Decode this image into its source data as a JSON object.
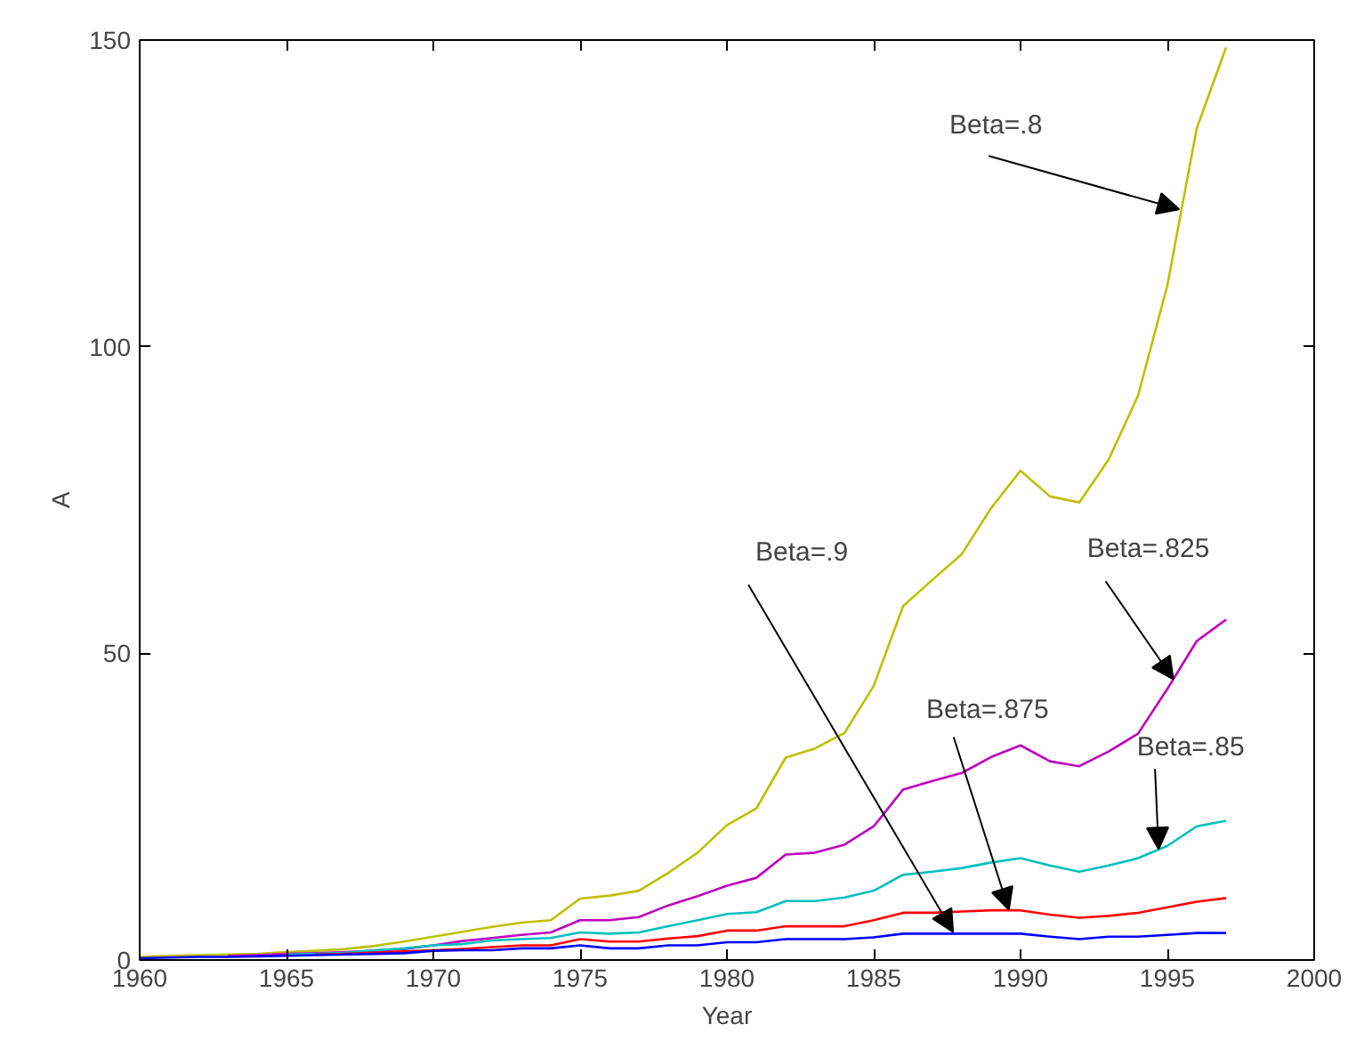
{
  "chart_data": {
    "type": "line",
    "xlabel": "Year",
    "ylabel": "A",
    "x": [
      1960,
      1961,
      1962,
      1963,
      1964,
      1965,
      1966,
      1967,
      1968,
      1969,
      1970,
      1971,
      1972,
      1973,
      1974,
      1975,
      1976,
      1977,
      1978,
      1979,
      1980,
      1981,
      1982,
      1983,
      1984,
      1985,
      1986,
      1987,
      1988,
      1989,
      1990,
      1991,
      1992,
      1993,
      1994,
      1995,
      1996,
      1997
    ],
    "series": [
      {
        "color": "#bfbf00",
        "values": [
          0.5,
          0.7,
          0.8,
          0.9,
          1.0,
          1.3,
          1.5,
          1.8,
          2.3,
          3.0,
          3.8,
          4.6,
          5.4,
          6.1,
          6.5,
          10.0,
          10.5,
          11.3,
          14.2,
          17.5,
          22.0,
          24.7,
          33.0,
          34.5,
          37.0,
          44.7,
          57.7,
          62.0,
          66.2,
          73.7,
          79.8,
          75.6,
          74.6,
          81.6,
          92.0,
          110.0,
          135.6,
          148.8
        ]
      },
      {
        "color": "#bf00bf",
        "values": [
          null,
          null,
          null,
          0.7,
          0.8,
          1.0,
          1.1,
          1.3,
          1.5,
          1.8,
          2.4,
          3.1,
          3.6,
          4.1,
          4.5,
          6.5,
          6.5,
          7.0,
          8.9,
          10.4,
          12.1,
          13.4,
          17.2,
          17.5,
          18.8,
          21.8,
          27.8,
          29.2,
          30.5,
          33.1,
          35.0,
          32.4,
          31.6,
          34.0,
          36.9,
          44.2,
          52.0,
          55.5
        ]
      },
      {
        "color": "#00bfbf",
        "values": [
          null,
          null,
          null,
          null,
          null,
          0.9,
          1.0,
          1.2,
          1.6,
          1.9,
          2.4,
          2.6,
          3.2,
          3.4,
          3.6,
          4.5,
          4.3,
          4.5,
          5.5,
          6.5,
          7.5,
          7.8,
          9.6,
          9.6,
          10.2,
          11.3,
          13.9,
          14.4,
          15.0,
          15.9,
          16.6,
          15.4,
          14.4,
          15.4,
          16.6,
          18.6,
          21.8,
          22.7
        ]
      },
      {
        "color": "#ff0000",
        "values": [
          null,
          null,
          null,
          null,
          null,
          null,
          0.9,
          1.0,
          1.2,
          1.4,
          1.6,
          1.8,
          2.1,
          2.4,
          2.4,
          3.4,
          3.0,
          3.0,
          3.5,
          3.9,
          4.8,
          4.8,
          5.5,
          5.5,
          5.5,
          6.5,
          7.7,
          7.7,
          7.9,
          8.1,
          8.1,
          7.4,
          6.9,
          7.2,
          7.7,
          8.6,
          9.5,
          10.1
        ]
      },
      {
        "color": "#0000ff",
        "values": [
          0.3,
          0.4,
          0.5,
          0.5,
          0.6,
          0.7,
          0.8,
          0.9,
          1.0,
          1.1,
          1.5,
          1.6,
          1.6,
          1.9,
          1.9,
          2.4,
          1.9,
          1.9,
          2.4,
          2.4,
          2.9,
          2.9,
          3.4,
          3.4,
          3.4,
          3.7,
          4.3,
          4.3,
          4.3,
          4.3,
          4.3,
          3.8,
          3.4,
          3.8,
          3.8,
          4.1,
          4.4,
          4.4
        ]
      }
    ],
    "annotations": [
      {
        "text": "Beta=.8",
        "x": 1995.4,
        "y": 122.4
      },
      {
        "text": "Beta=.825",
        "x": 1995.2,
        "y": 45.8
      },
      {
        "text": "Beta=.85",
        "x": 1994.7,
        "y": 18.1
      },
      {
        "text": "Beta=.875",
        "x": 1989.6,
        "y": 8.2
      },
      {
        "text": "Beta=.9",
        "x": 1987.7,
        "y": 4.6
      }
    ],
    "xlim": [
      1960,
      2000
    ],
    "ylim": [
      0,
      150
    ],
    "xticks": [
      1960,
      1965,
      1970,
      1975,
      1980,
      1985,
      1990,
      1995,
      2000
    ],
    "yticks": [
      0,
      50,
      100,
      150
    ],
    "grid": false,
    "marker": "none",
    "line_style": "solid"
  }
}
